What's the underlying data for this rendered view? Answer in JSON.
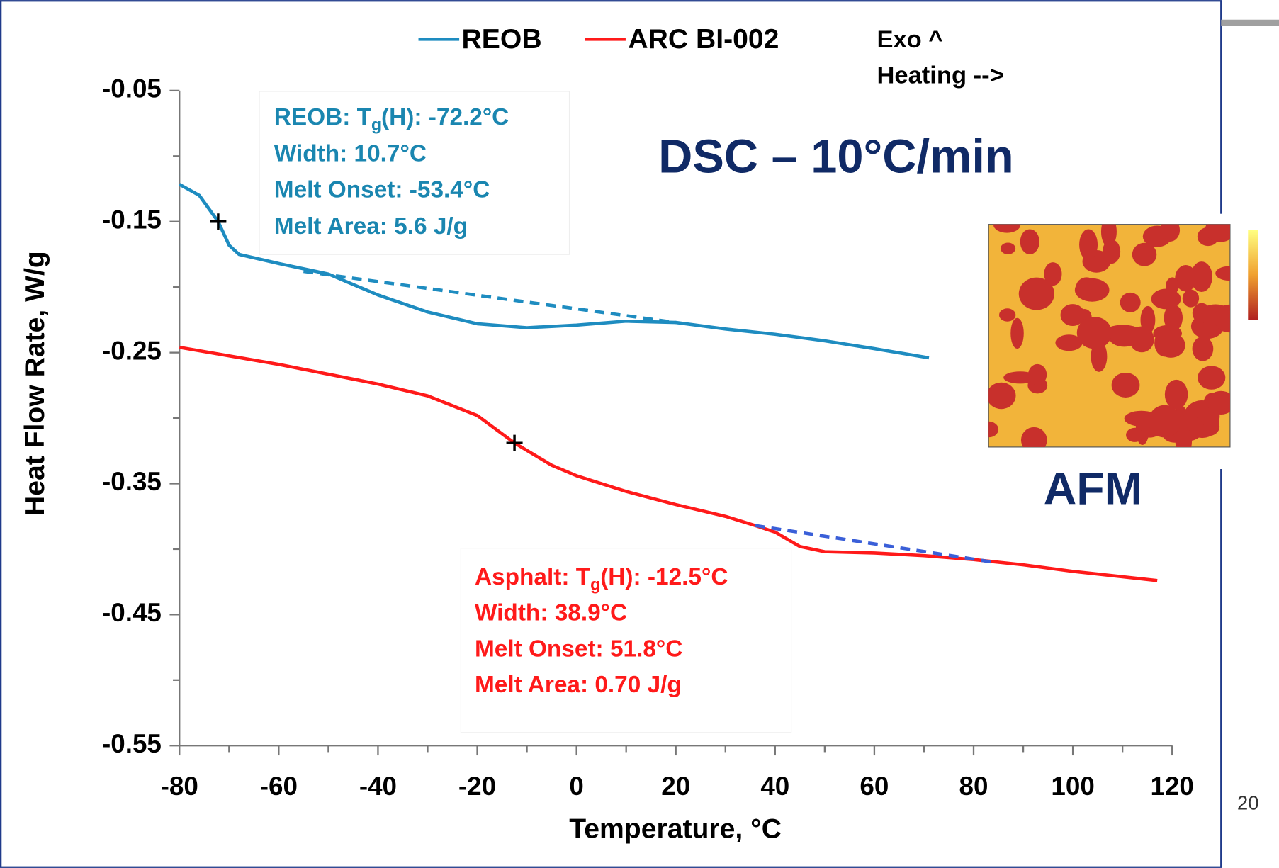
{
  "chart_data": {
    "type": "line",
    "title": "DSC – 10°C/min",
    "x_label": "Temperature, °C",
    "y_label": "Heat Flow Rate, W/g",
    "xlim": [
      -80,
      120
    ],
    "xticks": [
      -80,
      -60,
      -40,
      -20,
      0,
      20,
      40,
      60,
      80,
      100,
      120
    ],
    "ylim": [
      -0.55,
      -0.05
    ],
    "yticks": [
      -0.05,
      -0.15,
      -0.25,
      -0.35,
      -0.45,
      -0.55
    ],
    "grid": false,
    "legend": "top",
    "series": [
      {
        "name": "REOB",
        "color": "#1e8cc0",
        "x": [
          -80,
          -76,
          -72.2,
          -70,
          -68,
          -60,
          -50,
          -40,
          -30,
          -20,
          -10,
          0,
          10,
          20,
          30,
          40,
          50,
          60,
          71
        ],
        "values": [
          -0.1216,
          -0.13,
          -0.15,
          -0.168,
          -0.175,
          -0.182,
          -0.19,
          -0.206,
          -0.219,
          -0.228,
          -0.231,
          -0.229,
          -0.226,
          -0.227,
          -0.232,
          -0.236,
          -0.241,
          -0.247,
          -0.254
        ]
      },
      {
        "name": "ARC BI-002",
        "color": "#ff1a1a",
        "x": [
          -80,
          -60,
          -40,
          -30,
          -20,
          -12.5,
          -5,
          0,
          10,
          20,
          30,
          36,
          40,
          45,
          50,
          60,
          70,
          80,
          90,
          100,
          117
        ],
        "values": [
          -0.246,
          -0.259,
          -0.274,
          -0.283,
          -0.298,
          -0.319,
          -0.336,
          -0.344,
          -0.356,
          -0.366,
          -0.375,
          -0.382,
          -0.387,
          -0.398,
          -0.402,
          -0.403,
          -0.405,
          -0.408,
          -0.412,
          -0.417,
          -0.424
        ]
      }
    ],
    "baselines": [
      {
        "color": "#1e8cc0",
        "x": [
          -55,
          20
        ],
        "values": [
          -0.188,
          -0.227
        ]
      },
      {
        "color": "#3a5fd8",
        "x": [
          36,
          84
        ],
        "values": [
          -0.382,
          -0.41
        ]
      }
    ],
    "markers": [
      {
        "x": -72.2,
        "y": -0.15
      },
      {
        "x": -12.5,
        "y": -0.319
      }
    ],
    "annotations": {
      "heating": [
        "Exo ^",
        "Heating -->"
      ],
      "reob": {
        "color": "#1a86b0",
        "tg": {
          "pre": "REOB: T",
          "sub": "g",
          "post": "(H): -72.2°C"
        },
        "lines": [
          "Width:  10.7°C",
          "Melt Onset: -53.4°C",
          "Melt Area: 5.6 J/g"
        ]
      },
      "arc": {
        "color": "#ff1a1a",
        "tg": {
          "pre": "Asphalt: T",
          "sub": "g",
          "post": "(H): -12.5°C"
        },
        "lines": [
          "Width:  38.9°C",
          "Melt Onset: 51.8°C",
          "Melt Area: 0.70 J/g"
        ]
      },
      "afm": "AFM"
    }
  },
  "slide_number": "20"
}
